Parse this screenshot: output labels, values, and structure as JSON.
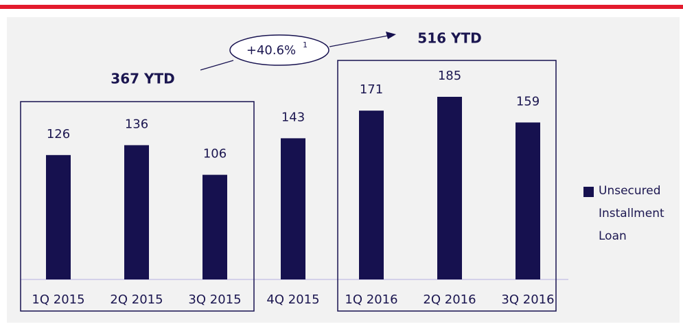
{
  "chart_data": {
    "type": "bar",
    "categories": [
      "1Q 2015",
      "2Q 2015",
      "3Q 2015",
      "4Q 2015",
      "1Q 2016",
      "2Q 2016",
      "3Q 2016"
    ],
    "series": [
      {
        "name": "Unsecured Installment Loan",
        "color": "#16114f",
        "values": [
          126,
          136,
          106,
          143,
          171,
          185,
          159
        ]
      }
    ],
    "annotations": [
      "367 YTD",
      "516 YTD"
    ],
    "growth": "+40.6%",
    "footnote": "1"
  }
}
